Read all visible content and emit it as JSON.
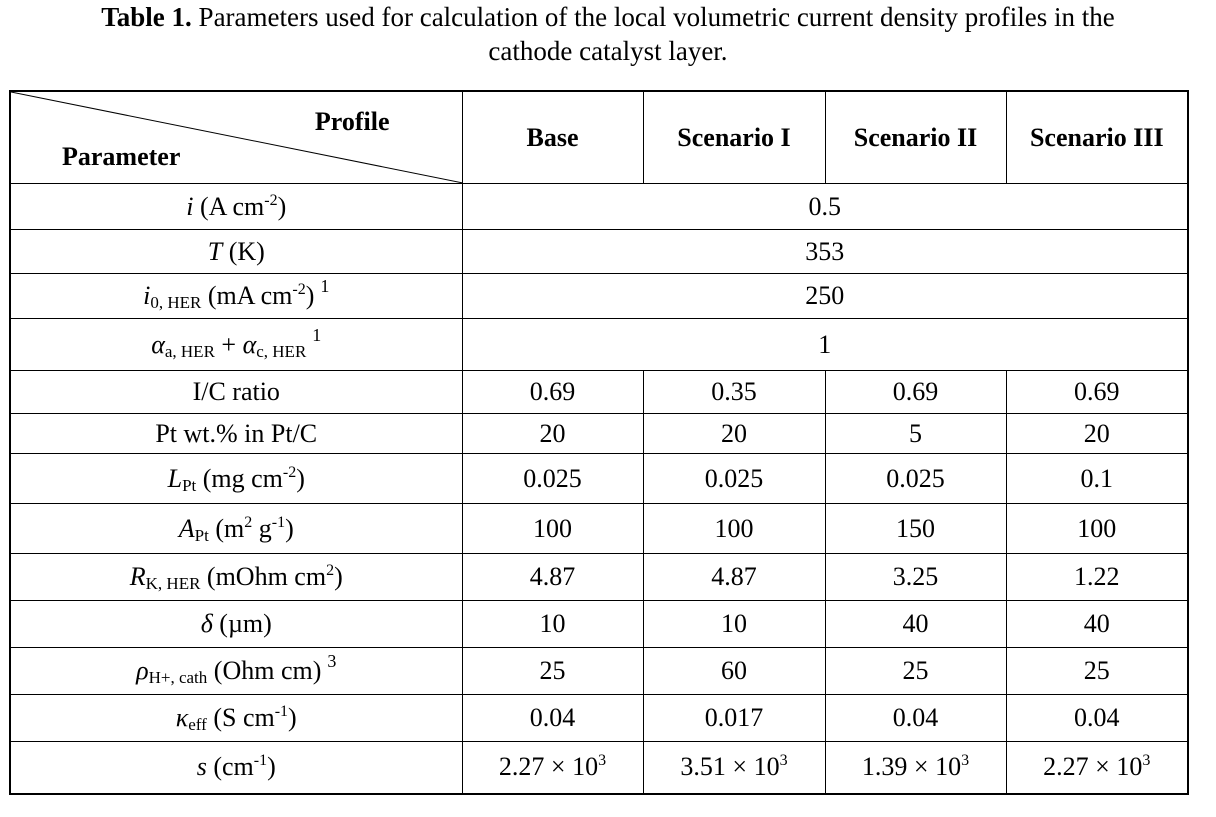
{
  "caption": {
    "label": "Table 1.",
    "text": " Parameters used for calculation of the local volumetric current density profiles in the",
    "text_line2": "cathode catalyst layer."
  },
  "header": {
    "profile": "Profile",
    "parameter": "Parameter",
    "columns": [
      "Base",
      "Scenario I",
      "Scenario II",
      "Scenario III"
    ]
  },
  "rows": [
    {
      "sym": "i",
      "pre": " (A cm",
      "sup": "-2",
      "post": ")",
      "note": "",
      "merged": "0.5"
    },
    {
      "sym": "T",
      "pre": " (K)",
      "merged": "353"
    },
    {
      "sym": "i",
      "sub": "0, HER",
      "pre": " (mA cm",
      "sup": "-2",
      "post": ")",
      "note": "1",
      "merged": "250"
    },
    {
      "sym": "α",
      "sub": "a, HER",
      "mid": " + ",
      "sym2": "α",
      "sub2": "c, HER",
      "note": "1",
      "merged": "1"
    },
    {
      "label": "I/C ratio",
      "values": [
        "0.69",
        "0.35",
        "0.69",
        "0.69"
      ]
    },
    {
      "label": "Pt wt.% in Pt/C",
      "values": [
        "20",
        "20",
        "5",
        "20"
      ]
    },
    {
      "sym": "L",
      "sub": "Pt",
      "pre": " (mg cm",
      "sup": "-2",
      "post": ")",
      "values": [
        "0.025",
        "0.025",
        "0.025",
        "0.1"
      ]
    },
    {
      "sym": "A",
      "sub": "Pt",
      "pre": " (m",
      "sup": "2",
      "mid2": " g",
      "sup2": "-1",
      "post": ")",
      "values": [
        "100",
        "100",
        "150",
        "100"
      ]
    },
    {
      "sym": "R",
      "sub": "K, HER",
      "pre": " (mOhm cm",
      "sup": "2",
      "post": ")",
      "values": [
        "4.87",
        "4.87",
        "3.25",
        "1.22"
      ]
    },
    {
      "sym": "δ",
      "pre": " (µm)",
      "values": [
        "10",
        "10",
        "40",
        "40"
      ]
    },
    {
      "sym": "ρ",
      "sub": "H+, cath",
      "pre": " (Ohm cm)",
      "note": "3",
      "values": [
        "25",
        "60",
        "25",
        "25"
      ]
    },
    {
      "sym": "κ",
      "sub": "eff",
      "pre": " (S cm",
      "sup": "-1",
      "post": ")",
      "values": [
        "0.04",
        "0.017",
        "0.04",
        "0.04"
      ]
    },
    {
      "sym": "s",
      "pre": " (cm",
      "sup": "-1",
      "post": ")",
      "values": [
        "2.27 × 10",
        "3.51 × 10",
        "1.39 × 10",
        "2.27 × 10"
      ],
      "value_sup": "3"
    }
  ]
}
